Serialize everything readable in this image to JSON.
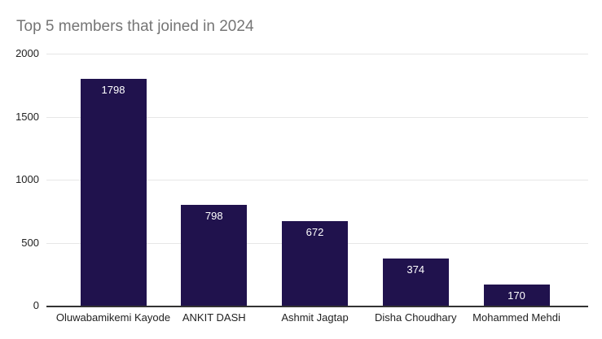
{
  "chart_data": {
    "type": "bar",
    "title": "Top 5 members that joined in 2024",
    "categories": [
      "Oluwabamikemi Kayode",
      "ANKIT DASH",
      "Ashmit Jagtap",
      "Disha Choudhary",
      "Mohammed Mehdi"
    ],
    "values": [
      1798,
      798,
      672,
      374,
      170
    ],
    "xlabel": "",
    "ylabel": "",
    "ylim": [
      0,
      2000
    ],
    "yticks": [
      0,
      500,
      1000,
      1500,
      2000
    ],
    "grid": true,
    "legend": "none",
    "colors": {
      "bar": "#20124d",
      "value_label": "#ffffff",
      "title": "#757575",
      "axis_labels": "#222222",
      "gridline": "#e6e6e6",
      "baseline": "#333333",
      "background": "#ffffff"
    }
  }
}
